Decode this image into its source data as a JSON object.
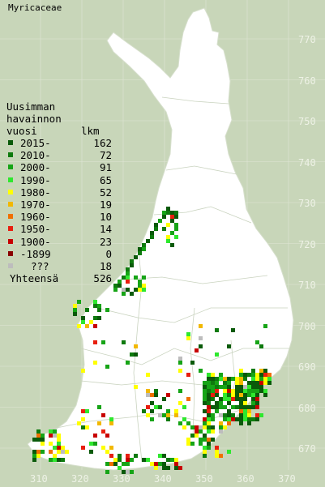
{
  "title": "Myricaceae",
  "legend": {
    "header": [
      "Uusimman",
      "havainnon",
      "vuosi"
    ],
    "count_header": "lkm",
    "items": [
      {
        "label": "2015-",
        "count": "162",
        "color": "#0a5a0a"
      },
      {
        "label": "2010-",
        "count": "72",
        "color": "#0e7a0e"
      },
      {
        "label": "2000-",
        "count": "91",
        "color": "#16a416"
      },
      {
        "label": "1990-",
        "count": "65",
        "color": "#2ee82e"
      },
      {
        "label": "1980-",
        "count": "52",
        "color": "#ffff00"
      },
      {
        "label": "1970-",
        "count": "19",
        "color": "#f2b800"
      },
      {
        "label": "1960-",
        "count": "10",
        "color": "#f07000"
      },
      {
        "label": "1950-",
        "count": "14",
        "color": "#e81e0e"
      },
      {
        "label": "1900-",
        "count": "23",
        "color": "#c80000"
      },
      {
        "label": "-1899",
        "count": "0",
        "color": "#8a0000"
      },
      {
        "label": "???",
        "count": "18",
        "color": "#bdbdbd"
      }
    ],
    "total_label": "Yhteensä",
    "total": "526"
  },
  "y_ticks": [
    "770",
    "760",
    "750",
    "740",
    "730",
    "720",
    "710",
    "700",
    "690",
    "680",
    "670"
  ],
  "x_ticks": [
    "310",
    "320",
    "330",
    "340",
    "350",
    "360",
    "370"
  ],
  "colors": {
    "background": "#c8d6b9",
    "land": "#ffffff",
    "grid": "#dfe6d6",
    "tick_text": "#eef2e6"
  }
}
